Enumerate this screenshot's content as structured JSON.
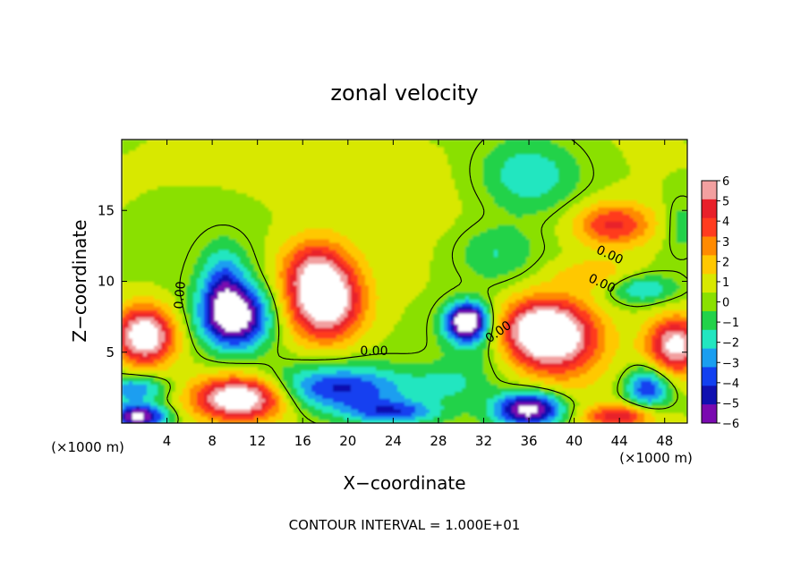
{
  "chart_data": {
    "type": "heatmap",
    "title": "zonal velocity",
    "xlabel": "X−coordinate",
    "ylabel": "Z−coordinate",
    "x_unit_left": "(×1000 m)",
    "x_unit_right": "(×1000 m)",
    "footer": "CONTOUR INTERVAL = 1.000E+01",
    "xlim": [
      0,
      50
    ],
    "ylim": [
      0,
      20
    ],
    "x_ticks": [
      4,
      8,
      12,
      16,
      20,
      24,
      28,
      32,
      36,
      40,
      44,
      48
    ],
    "y_ticks": [
      5,
      10,
      15
    ],
    "colorbar": {
      "ticks": [
        6,
        5,
        4,
        3,
        2,
        1,
        0,
        -1,
        -2,
        -3,
        -4,
        -5,
        -6
      ],
      "tick_labels": [
        "6",
        "5",
        "4",
        "3",
        "2",
        "1",
        "0",
        "−1",
        "−2",
        "−3",
        "−4",
        "−5",
        "−6"
      ],
      "colors": [
        "#f2a0a0",
        "#e8202a",
        "#ff3b1f",
        "#ff8a00",
        "#ffc800",
        "#d8e800",
        "#8ae000",
        "#22d24a",
        "#22e6c0",
        "#1a9ef0",
        "#1240f0",
        "#1010b0",
        "#7a0ab0"
      ]
    },
    "contour_labels": [
      {
        "text": "0.00",
        "x": 5.5,
        "y": 9.0,
        "angle": -85
      },
      {
        "text": "0.00",
        "x": 22.3,
        "y": 4.8,
        "angle": 0
      },
      {
        "text": "0.00",
        "x": 33.5,
        "y": 6.2,
        "angle": -35
      },
      {
        "text": "0.00",
        "x": 43.0,
        "y": 11.6,
        "angle": 25
      },
      {
        "text": "0.00",
        "x": 42.3,
        "y": 9.6,
        "angle": 25
      }
    ],
    "blobs": [
      {
        "x": 26,
        "y": 17,
        "rx": 30,
        "ry": 4.0,
        "v": 0.4
      },
      {
        "x": 36,
        "y": 17.5,
        "rx": 4.5,
        "ry": 2.6,
        "v": -3.0
      },
      {
        "x": 33,
        "y": 12,
        "rx": 3.5,
        "ry": 2.0,
        "v": -2.0
      },
      {
        "x": 18,
        "y": 8.5,
        "rx": 3.2,
        "ry": 2.6,
        "v": 8.0
      },
      {
        "x": 17,
        "y": 11,
        "rx": 3.0,
        "ry": 2.2,
        "v": 4.0
      },
      {
        "x": 10,
        "y": 7.5,
        "rx": 3.0,
        "ry": 2.2,
        "v": -8.0
      },
      {
        "x": 9,
        "y": 10,
        "rx": 2.0,
        "ry": 2.5,
        "v": -3.5
      },
      {
        "x": 19,
        "y": 2.5,
        "rx": 6.5,
        "ry": 1.6,
        "v": -5.0
      },
      {
        "x": 2,
        "y": 6.2,
        "rx": 2.6,
        "ry": 2.0,
        "v": 8.0
      },
      {
        "x": 1,
        "y": 2.5,
        "rx": 3.0,
        "ry": 0.9,
        "v": -4.0
      },
      {
        "x": 1.5,
        "y": 0.5,
        "rx": 2.5,
        "ry": 0.9,
        "v": -7.5
      },
      {
        "x": 10.5,
        "y": 1.8,
        "rx": 4.0,
        "ry": 1.5,
        "v": 8.5
      },
      {
        "x": 37,
        "y": 6.5,
        "rx": 4.0,
        "ry": 2.2,
        "v": 8.0
      },
      {
        "x": 39,
        "y": 5.5,
        "rx": 4.0,
        "ry": 3.0,
        "v": 3.0
      },
      {
        "x": 30.5,
        "y": 7.2,
        "rx": 1.8,
        "ry": 1.3,
        "v": -8.5
      },
      {
        "x": 32,
        "y": 6,
        "rx": 3.5,
        "ry": 2.5,
        "v": -2.0
      },
      {
        "x": 43.5,
        "y": 14,
        "rx": 3.5,
        "ry": 1.6,
        "v": 4.5
      },
      {
        "x": 42,
        "y": 10.5,
        "rx": 4.0,
        "ry": 1.2,
        "v": 2.0
      },
      {
        "x": 46,
        "y": 9.5,
        "rx": 3.0,
        "ry": 1.0,
        "v": -3.0
      },
      {
        "x": 49,
        "y": 5.5,
        "rx": 2.5,
        "ry": 2.0,
        "v": 7.0
      },
      {
        "x": 46.5,
        "y": 2.5,
        "rx": 2.0,
        "ry": 1.5,
        "v": -5.0
      },
      {
        "x": 36,
        "y": 1.0,
        "rx": 3.0,
        "ry": 1.2,
        "v": -8.0
      },
      {
        "x": 44,
        "y": 0.5,
        "rx": 3.0,
        "ry": 0.8,
        "v": 5.0
      },
      {
        "x": 29,
        "y": 2.8,
        "rx": 3.0,
        "ry": 1.3,
        "v": -1.5
      },
      {
        "x": 24,
        "y": 0.8,
        "rx": 4.0,
        "ry": 0.8,
        "v": -4.0
      },
      {
        "x": 2.5,
        "y": 15,
        "rx": 2.0,
        "ry": 2.0,
        "v": 0.0
      },
      {
        "x": 49.5,
        "y": 14,
        "rx": 1.5,
        "ry": 2.0,
        "v": -1.5
      }
    ]
  }
}
